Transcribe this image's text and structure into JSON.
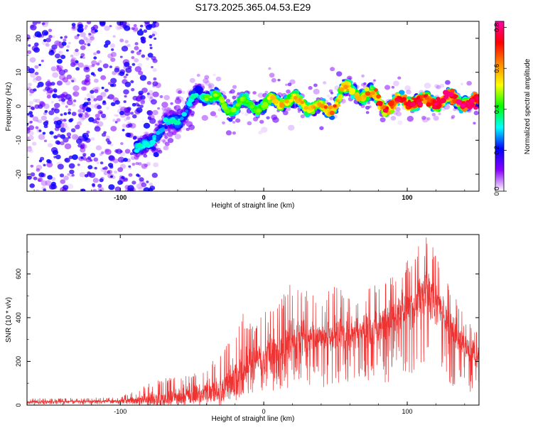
{
  "title": "S173.2025.365.04.53.E29",
  "chart_data": [
    {
      "type": "heatmap",
      "xlabel": "Height of straight line (km)",
      "ylabel": "Frequency (Hz)",
      "xlim": [
        -165,
        150
      ],
      "ylim": [
        -25,
        25
      ],
      "xticks": [
        -100,
        0,
        100
      ],
      "yticks": [
        -20,
        -10,
        0,
        10,
        20
      ],
      "grid": false,
      "colorbar": {
        "label": "Normalized spectral amplitude",
        "range": [
          0.0,
          0.83
        ],
        "ticks": [
          0.0,
          0.2,
          0.4,
          0.6,
          0.8
        ],
        "stops": [
          "#ffffff",
          "#8800ff",
          "#0000ff",
          "#00ffff",
          "#00ff00",
          "#ffff00",
          "#ff8800",
          "#ff0000",
          "#ff00aa"
        ]
      },
      "ridge": {
        "x": [
          -85,
          -75,
          -65,
          -55,
          -45,
          -35,
          -25,
          -15,
          -5,
          5,
          15,
          25,
          35,
          45,
          55,
          65,
          75,
          85,
          95,
          105,
          115,
          125,
          135,
          145
        ],
        "y": [
          -13,
          -8,
          -5,
          -2,
          4,
          3,
          -1,
          1,
          0,
          1,
          2,
          1,
          0,
          -2,
          5,
          4,
          3,
          0,
          1,
          2,
          1,
          2,
          2,
          1
        ]
      }
    },
    {
      "type": "line",
      "xlabel": "Height of straight line (km)",
      "ylabel": "SNR (10 * v/v)",
      "xlim": [
        -165,
        150
      ],
      "ylim": [
        0,
        780
      ],
      "xticks": [
        -100,
        0,
        100
      ],
      "yticks": [
        0,
        200,
        400,
        600
      ],
      "grid": false,
      "series": [
        {
          "name": "SNR",
          "color": "#ee3333",
          "envelope": {
            "x": [
              -165,
              -100,
              -85,
              -70,
              -50,
              -30,
              -15,
              -5,
              0,
              10,
              20,
              30,
              40,
              50,
              60,
              70,
              80,
              90,
              100,
              108,
              115,
              122,
              130,
              140,
              150
            ],
            "median": [
              15,
              18,
              25,
              30,
              45,
              70,
              150,
              200,
              230,
              260,
              290,
              310,
              320,
              330,
              320,
              330,
              360,
              400,
              440,
              470,
              500,
              450,
              350,
              270,
              210
            ],
            "max": [
              30,
              35,
              90,
              120,
              150,
              230,
              420,
              380,
              420,
              470,
              580,
              520,
              480,
              560,
              490,
              520,
              560,
              600,
              660,
              740,
              780,
              650,
              560,
              400,
              330
            ]
          }
        }
      ]
    }
  ]
}
